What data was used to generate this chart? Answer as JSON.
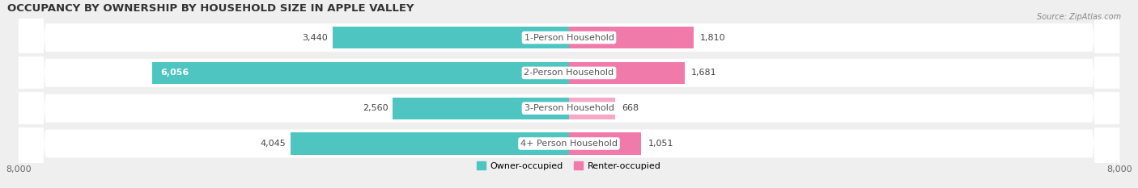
{
  "title": "OCCUPANCY BY OWNERSHIP BY HOUSEHOLD SIZE IN APPLE VALLEY",
  "source": "Source: ZipAtlas.com",
  "categories": [
    "1-Person Household",
    "2-Person Household",
    "3-Person Household",
    "4+ Person Household"
  ],
  "owner_values": [
    3440,
    6056,
    2560,
    4045
  ],
  "renter_values": [
    1810,
    1681,
    668,
    1051
  ],
  "owner_color": "#4EC5C1",
  "renter_color": "#F07BAB",
  "renter_color_light": "#F5A8C8",
  "background_color": "#efefef",
  "bar_bg_color": "#e2e2e2",
  "max_value": 8000,
  "title_fontsize": 9.5,
  "label_fontsize": 8,
  "tick_fontsize": 8,
  "legend_fontsize": 8,
  "source_fontsize": 7
}
